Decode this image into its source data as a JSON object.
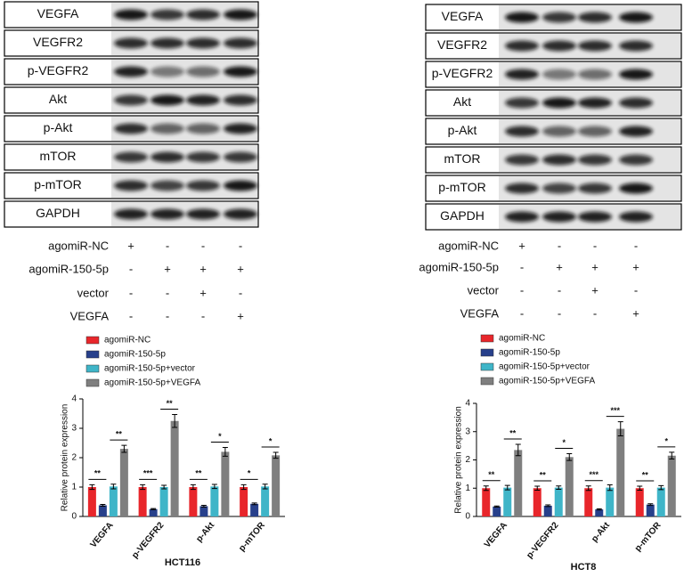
{
  "blots": [
    {
      "proteins": [
        "VEGFA",
        "VEGFR2",
        "p-VEGFR2",
        "Akt",
        "p-Akt",
        "mTOR",
        "p-mTOR",
        "GAPDH"
      ],
      "conditions": [
        {
          "label": "agomiR-NC",
          "signs": [
            "+",
            "-",
            "-",
            "-"
          ]
        },
        {
          "label": "agomiR-150-5p",
          "signs": [
            "-",
            "+",
            "+",
            "+"
          ]
        },
        {
          "label": "vector",
          "signs": [
            "-",
            "-",
            "+",
            "-"
          ]
        },
        {
          "label": "VEGFA",
          "signs": [
            "-",
            "-",
            "-",
            "+"
          ]
        }
      ]
    },
    {
      "proteins": [
        "VEGFA",
        "VEGFR2",
        "p-VEGFR2",
        "Akt",
        "p-Akt",
        "mTOR",
        "p-mTOR",
        "GAPDH"
      ],
      "conditions": [
        {
          "label": "agomiR-NC",
          "signs": [
            "+",
            "-",
            "-",
            "-"
          ]
        },
        {
          "label": "agomiR-150-5p",
          "signs": [
            "-",
            "+",
            "+",
            "+"
          ]
        },
        {
          "label": "vector",
          "signs": [
            "-",
            "-",
            "+",
            "-"
          ]
        },
        {
          "label": "VEGFA",
          "signs": [
            "-",
            "-",
            "-",
            "+"
          ]
        }
      ]
    }
  ],
  "chart_data": [
    {
      "type": "bar",
      "title": "HCT116",
      "y_label": "Relative protein expression",
      "categories": [
        "VEGFA",
        "p-VEGFR2",
        "p-Akt",
        "p-mTOR"
      ],
      "series": [
        {
          "name": "agomiR-NC",
          "color": "#e8262b",
          "values": [
            1.0,
            1.0,
            1.0,
            1.0
          ],
          "errors": [
            0.08,
            0.08,
            0.08,
            0.08
          ]
        },
        {
          "name": "agomiR-150-5p",
          "color": "#27408b",
          "values": [
            0.38,
            0.25,
            0.35,
            0.43
          ],
          "errors": [
            0.03,
            0.02,
            0.03,
            0.03
          ]
        },
        {
          "name": "agomiR-150-5p+vector",
          "color": "#3fb5c8",
          "values": [
            1.02,
            1.0,
            1.02,
            1.02
          ],
          "errors": [
            0.08,
            0.06,
            0.07,
            0.08
          ]
        },
        {
          "name": "agomiR-150-5p+VEGFA",
          "color": "#7f7f7f",
          "values": [
            2.3,
            3.25,
            2.2,
            2.08
          ],
          "errors": [
            0.12,
            0.22,
            0.15,
            0.1
          ]
        }
      ],
      "significance": [
        [
          "**",
          "**"
        ],
        [
          "***",
          "**"
        ],
        [
          "**",
          "*"
        ],
        [
          "*",
          "*"
        ]
      ],
      "ylim": [
        0,
        4
      ],
      "yticks": [
        0,
        1,
        2,
        3,
        4
      ]
    },
    {
      "type": "bar",
      "title": "HCT8",
      "y_label": "Relative protein expression",
      "categories": [
        "VEGFA",
        "p-VEGFR2",
        "p-Akt",
        "p-mTOR"
      ],
      "series": [
        {
          "name": "agomiR-NC",
          "color": "#e8262b",
          "values": [
            1.0,
            1.0,
            1.0,
            1.0
          ],
          "errors": [
            0.08,
            0.07,
            0.08,
            0.07
          ]
        },
        {
          "name": "agomiR-150-5p",
          "color": "#27408b",
          "values": [
            0.35,
            0.38,
            0.25,
            0.42
          ],
          "errors": [
            0.02,
            0.03,
            0.02,
            0.03
          ]
        },
        {
          "name": "agomiR-150-5p+vector",
          "color": "#3fb5c8",
          "values": [
            1.02,
            1.02,
            1.02,
            1.02
          ],
          "errors": [
            0.08,
            0.06,
            0.1,
            0.07
          ]
        },
        {
          "name": "agomiR-150-5p+VEGFA",
          "color": "#7f7f7f",
          "values": [
            2.35,
            2.1,
            3.1,
            2.15
          ],
          "errors": [
            0.2,
            0.12,
            0.25,
            0.12
          ]
        }
      ],
      "significance": [
        [
          "**",
          "**"
        ],
        [
          "**",
          "*"
        ],
        [
          "***",
          "***"
        ],
        [
          "**",
          "*"
        ]
      ],
      "ylim": [
        0,
        4
      ],
      "yticks": [
        0,
        1,
        2,
        3,
        4
      ]
    }
  ]
}
